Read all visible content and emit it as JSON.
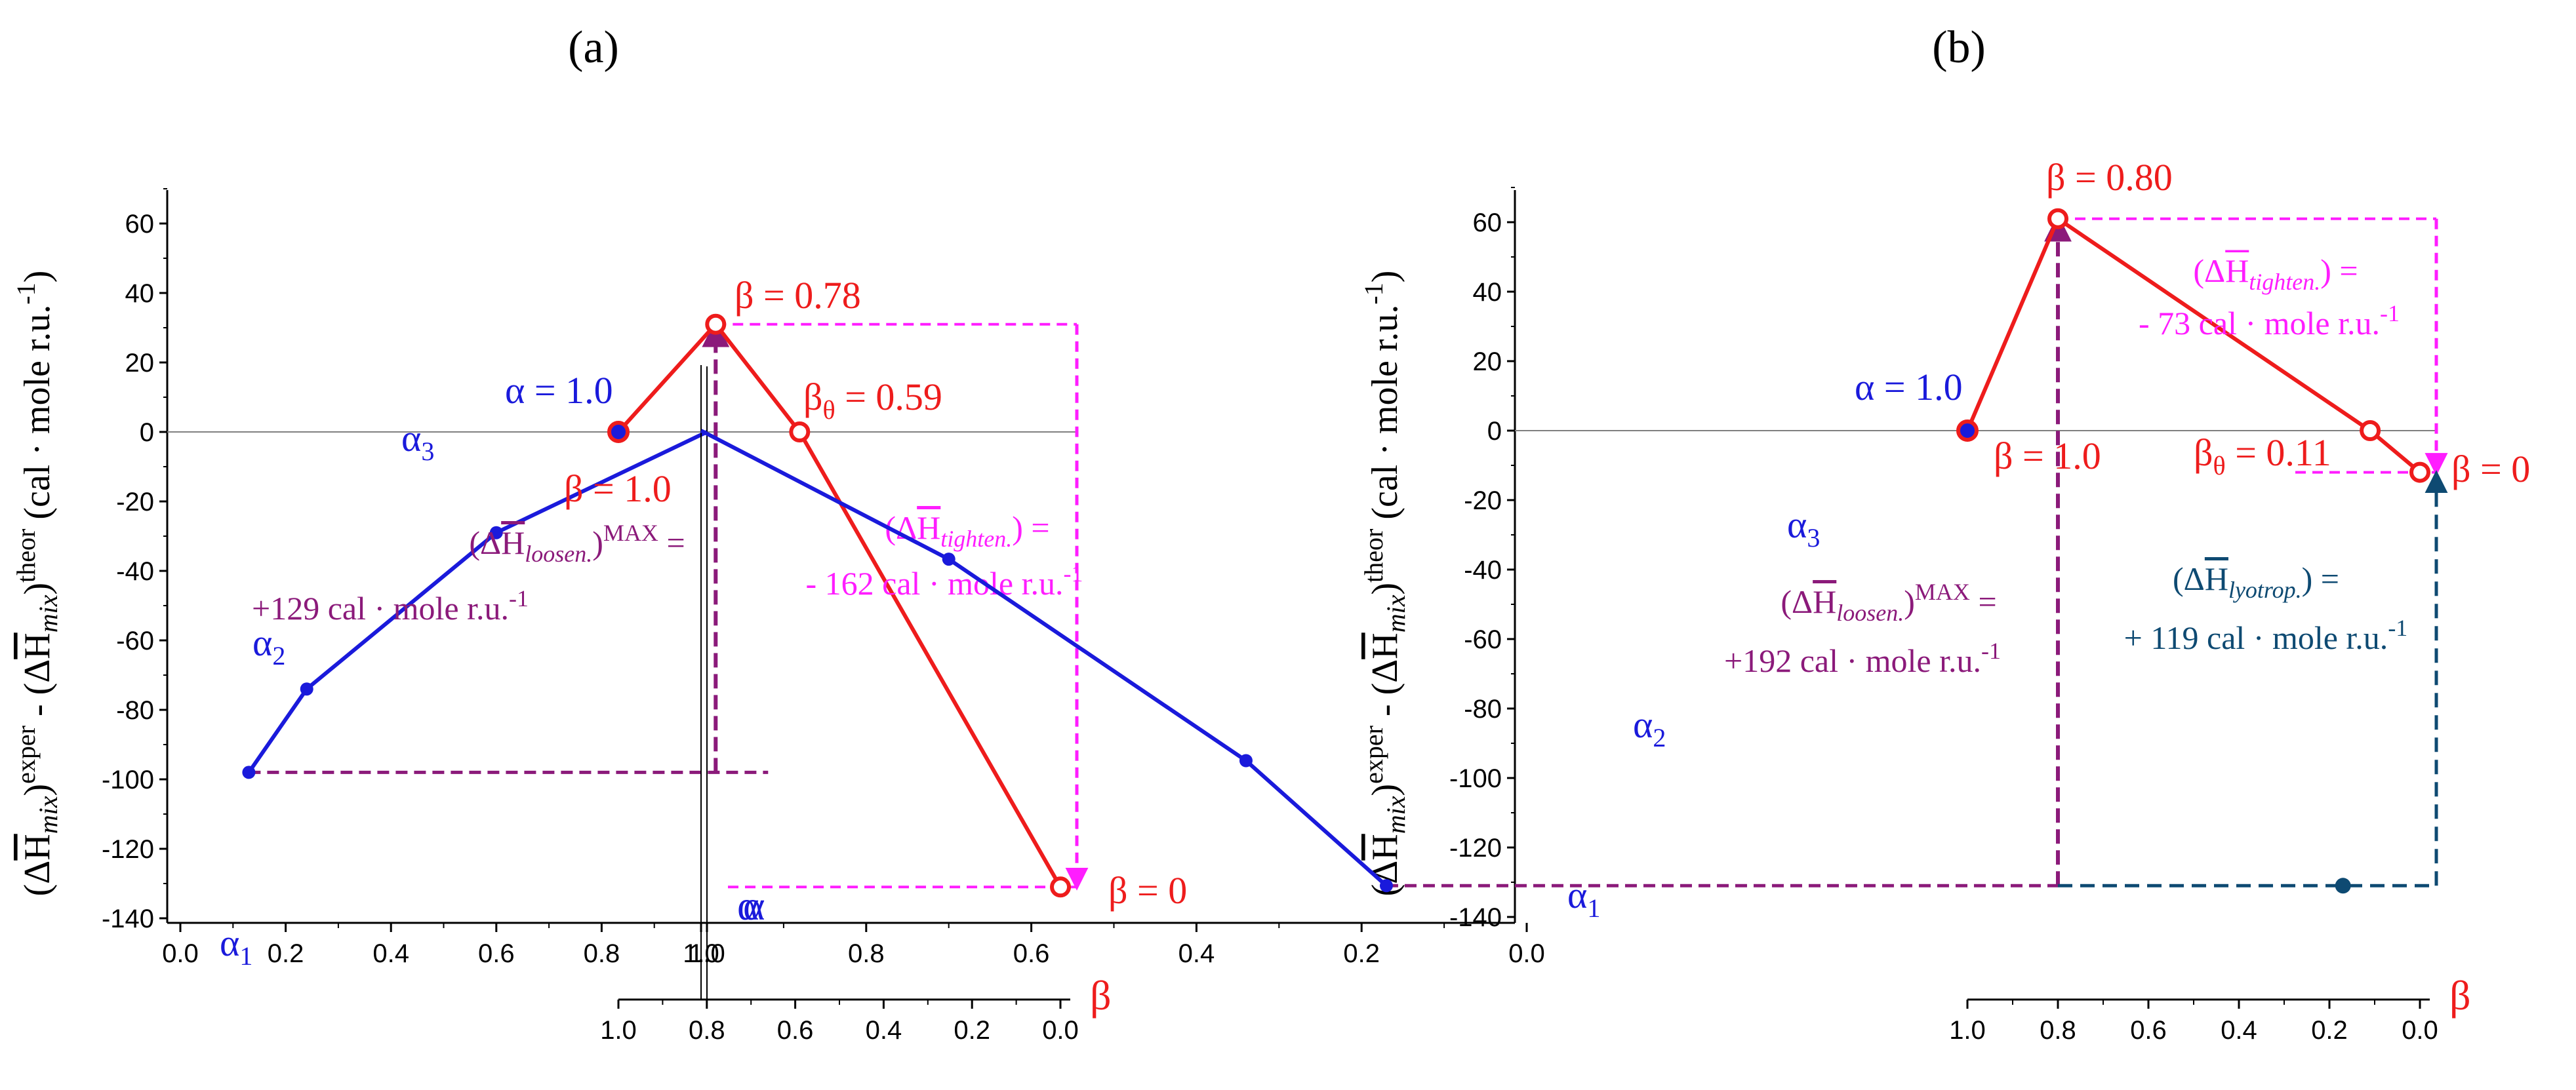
{
  "colors": {
    "alpha": "#1a1adb",
    "beta": "#ee1c1c",
    "loosen": "#8b1a7a",
    "tighten": "#ff1dff",
    "lyotrop": "#0e4a72",
    "axis": "#000000",
    "zero_line": "#808080"
  },
  "chart_data": [
    {
      "type": "line",
      "panel_label": "(a)",
      "ylabel": "(ΔH̄mix)exper - (ΔH̄mix)theor (cal · mole r.u.-1)",
      "ylabel_parts": {
        "open_paren": "(Δ",
        "H": "H",
        "mix": "mix",
        "exper": "exper",
        "minus": " - (Δ",
        "theor": "theor",
        "units": "(cal · mole r.u.",
        "units_exp": "-1",
        "close": ")"
      },
      "ylim": [
        -140,
        70
      ],
      "yticks": [
        60,
        40,
        20,
        0,
        -20,
        -40,
        -60,
        -80,
        -100,
        -120,
        -140
      ],
      "ytick_labels": [
        "60",
        "40",
        "20",
        "0",
        "-20",
        "-40",
        "-60",
        "-80",
        "-100",
        "-120",
        "-140"
      ],
      "alpha_axis": {
        "label": "α",
        "range": [
          0.0,
          1.0
        ],
        "ticks": [
          0.0,
          0.2,
          0.4,
          0.6,
          0.8,
          1.0
        ],
        "tick_labels": [
          "0.0",
          "0.2",
          "0.4",
          "0.6",
          "0.8",
          "1.0"
        ]
      },
      "beta_axis": {
        "label": "β",
        "range": [
          1.0,
          0.0
        ],
        "ticks": [
          1.0,
          0.8,
          0.6,
          0.4,
          0.2,
          0.0
        ],
        "tick_labels": [
          "1.0",
          "0.8",
          "0.6",
          "0.4",
          "0.2",
          "0.0"
        ]
      },
      "series": [
        {
          "name": "alpha",
          "axis": "alpha",
          "x": [
            0.13,
            0.24,
            0.6,
            1.0
          ],
          "y": [
            -98,
            -74,
            -29,
            0
          ]
        },
        {
          "name": "beta",
          "axis": "beta",
          "x": [
            1.0,
            0.78,
            0.59,
            0.0
          ],
          "y": [
            0,
            31,
            0,
            -131
          ]
        }
      ],
      "labels": {
        "alpha1": {
          "main": "α",
          "sub": "1"
        },
        "alpha2": {
          "main": "α",
          "sub": "2"
        },
        "alpha3": {
          "main": "α",
          "sub": "3"
        },
        "alpha_one": "α = 1.0",
        "beta_one": "β = 1.0",
        "beta_peak": "β = 0.78",
        "beta_theta_main": "β",
        "beta_theta_sub": "θ",
        "beta_theta_value": " = 0.59",
        "beta_zero": "β = 0"
      },
      "loosen": {
        "sub": "loosen.",
        "sup": "MAX",
        "value": "+129 cal · mole r.u.",
        "exp": "-1"
      },
      "tighten": {
        "sub": "tighten.",
        "value": "- 162 cal · mole r.u.",
        "exp": "-1"
      }
    },
    {
      "type": "line",
      "panel_label": "(b)",
      "ylabel": "(ΔH̄mix)exper - (ΔH̄mix)theor (cal · mole r.u.-1)",
      "ylabel_parts": {
        "open_paren": "(Δ",
        "H": "H",
        "mix": "mix",
        "exper": "exper",
        "minus": " - (Δ",
        "theor": "theor",
        "units": "(cal · mole r.u.",
        "units_exp": "-1",
        "close": ")"
      },
      "ylim": [
        -140,
        70
      ],
      "yticks": [
        60,
        40,
        20,
        0,
        -20,
        -40,
        -60,
        -80,
        -100,
        -120,
        -140
      ],
      "ytick_labels": [
        "60",
        "40",
        "20",
        "0",
        "-20",
        "-40",
        "-60",
        "-80",
        "-100",
        "-120",
        "-140"
      ],
      "alpha_axis": {
        "label": "α",
        "range": [
          0.0,
          1.0
        ],
        "ticks": [
          0.0,
          0.2,
          0.4,
          0.6,
          0.8,
          1.0
        ],
        "tick_labels": [
          "0.0",
          "0.2",
          "0.4",
          "0.6",
          "0.8",
          "1.0"
        ]
      },
      "beta_axis": {
        "label": "β",
        "range": [
          1.0,
          0.0
        ],
        "ticks": [
          1.0,
          0.8,
          0.6,
          0.4,
          0.2,
          0.0
        ],
        "tick_labels": [
          "1.0",
          "0.8",
          "0.6",
          "0.4",
          "0.2",
          "0.0"
        ]
      },
      "series": [
        {
          "name": "alpha",
          "axis": "alpha",
          "x": [
            0.17,
            0.34,
            0.7,
            1.0
          ],
          "y": [
            -131,
            -95,
            -37,
            0
          ]
        },
        {
          "name": "beta",
          "axis": "beta",
          "x": [
            1.0,
            0.8,
            0.11,
            0.0
          ],
          "y": [
            0,
            61,
            0,
            -12
          ]
        }
      ],
      "labels": {
        "alpha1": {
          "main": "α",
          "sub": "1"
        },
        "alpha2": {
          "main": "α",
          "sub": "2"
        },
        "alpha3": {
          "main": "α",
          "sub": "3"
        },
        "alpha_one": "α = 1.0",
        "beta_one": "β = 1.0",
        "beta_peak": "β = 0.80",
        "beta_theta_main": "β",
        "beta_theta_sub": "θ",
        "beta_theta_value": " = 0.11",
        "beta_zero": "β = 0"
      },
      "loosen": {
        "sub": "loosen.",
        "sup": "MAX",
        "value": "+192 cal · mole r.u.",
        "exp": "-1"
      },
      "tighten": {
        "sub": "tighten.",
        "value": "- 73 cal · mole r.u.",
        "exp": "-1"
      },
      "lyotrop": {
        "sub": "lyotrop.",
        "value": "+ 119 cal · mole r.u.",
        "exp": "-1",
        "marker_beta": 0.17
      }
    }
  ]
}
